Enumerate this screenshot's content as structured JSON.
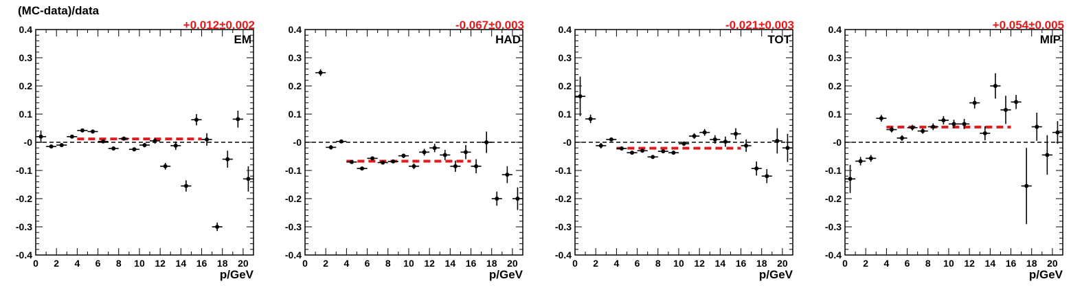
{
  "y_title": "(MC-data)/data",
  "chart_data": [
    {
      "type": "scatter",
      "label": "EM",
      "fit_text": "+0.012±0.002",
      "fit": {
        "value": 0.012,
        "x_range": [
          4,
          16
        ]
      },
      "xlabel": "p/GeV",
      "ylabel": "(MC-data)/data",
      "xlim": [
        0,
        21
      ],
      "ylim": [
        -0.4,
        0.4
      ],
      "xticks": [
        0,
        2,
        4,
        6,
        8,
        10,
        12,
        14,
        16,
        18,
        20
      ],
      "yticks": [
        -0.4,
        -0.3,
        -0.2,
        -0.1,
        0,
        0.1,
        0.2,
        0.3,
        0.4
      ],
      "ytick_labels": [
        "-0.4",
        "-0.3",
        "-0.2",
        "-0.1",
        "-0",
        "0.1",
        "0.2",
        "0.3",
        "0.4"
      ],
      "points": [
        {
          "x": 0.5,
          "y": 0.02,
          "ey": 0.022
        },
        {
          "x": 1.5,
          "y": -0.015,
          "ey": 0.006
        },
        {
          "x": 2.5,
          "y": -0.01,
          "ey": 0.006
        },
        {
          "x": 3.5,
          "y": 0.02,
          "ey": 0.006
        },
        {
          "x": 4.5,
          "y": 0.042,
          "ey": 0.006
        },
        {
          "x": 5.5,
          "y": 0.038,
          "ey": 0.006
        },
        {
          "x": 6.5,
          "y": 0.003,
          "ey": 0.006
        },
        {
          "x": 7.5,
          "y": -0.022,
          "ey": 0.006
        },
        {
          "x": 8.5,
          "y": 0.013,
          "ey": 0.006
        },
        {
          "x": 9.5,
          "y": -0.025,
          "ey": 0.007
        },
        {
          "x": 10.5,
          "y": -0.01,
          "ey": 0.008
        },
        {
          "x": 11.5,
          "y": 0.005,
          "ey": 0.01
        },
        {
          "x": 12.5,
          "y": -0.085,
          "ey": 0.012
        },
        {
          "x": 13.5,
          "y": -0.012,
          "ey": 0.015
        },
        {
          "x": 14.5,
          "y": -0.155,
          "ey": 0.02
        },
        {
          "x": 15.5,
          "y": 0.08,
          "ey": 0.02
        },
        {
          "x": 16.5,
          "y": 0.01,
          "ey": 0.022
        },
        {
          "x": 17.5,
          "y": -0.3,
          "ey": 0.015
        },
        {
          "x": 18.5,
          "y": -0.06,
          "ey": 0.03
        },
        {
          "x": 19.5,
          "y": 0.082,
          "ey": 0.03
        },
        {
          "x": 20.5,
          "y": -0.13,
          "ey": 0.045
        }
      ]
    },
    {
      "type": "scatter",
      "label": "HAD",
      "fit_text": "-0.067±0.003",
      "fit": {
        "value": -0.067,
        "x_range": [
          4,
          16
        ]
      },
      "xlabel": "p/GeV",
      "ylabel": "",
      "xlim": [
        0,
        21
      ],
      "ylim": [
        -0.4,
        0.4
      ],
      "xticks": [
        0,
        2,
        4,
        6,
        8,
        10,
        12,
        14,
        16,
        18,
        20
      ],
      "yticks": [
        -0.4,
        -0.3,
        -0.2,
        -0.1,
        0,
        0.1,
        0.2,
        0.3,
        0.4
      ],
      "ytick_labels": [
        "-0.4",
        "-0.3",
        "-0.2",
        "-0.1",
        "-0",
        "0.1",
        "0.2",
        "0.3",
        "0.4"
      ],
      "points": [
        {
          "x": 1.5,
          "y": 0.247,
          "ey": 0.012
        },
        {
          "x": 2.5,
          "y": -0.018,
          "ey": 0.008
        },
        {
          "x": 3.5,
          "y": 0.003,
          "ey": 0.006
        },
        {
          "x": 4.5,
          "y": -0.07,
          "ey": 0.006
        },
        {
          "x": 5.5,
          "y": -0.093,
          "ey": 0.006
        },
        {
          "x": 6.5,
          "y": -0.057,
          "ey": 0.006
        },
        {
          "x": 7.5,
          "y": -0.072,
          "ey": 0.006
        },
        {
          "x": 8.5,
          "y": -0.068,
          "ey": 0.006
        },
        {
          "x": 9.5,
          "y": -0.048,
          "ey": 0.008
        },
        {
          "x": 10.5,
          "y": -0.085,
          "ey": 0.01
        },
        {
          "x": 11.5,
          "y": -0.035,
          "ey": 0.012
        },
        {
          "x": 12.5,
          "y": -0.02,
          "ey": 0.015
        },
        {
          "x": 13.5,
          "y": -0.045,
          "ey": 0.018
        },
        {
          "x": 14.5,
          "y": -0.085,
          "ey": 0.02
        },
        {
          "x": 15.5,
          "y": -0.035,
          "ey": 0.025
        },
        {
          "x": 16.5,
          "y": -0.085,
          "ey": 0.025
        },
        {
          "x": 17.5,
          "y": 0.0,
          "ey": 0.038
        },
        {
          "x": 18.5,
          "y": -0.2,
          "ey": 0.025
        },
        {
          "x": 19.5,
          "y": -0.115,
          "ey": 0.03
        },
        {
          "x": 20.5,
          "y": -0.2,
          "ey": 0.04
        }
      ]
    },
    {
      "type": "scatter",
      "label": "TOT",
      "fit_text": "-0.021±0.003",
      "fit": {
        "value": -0.021,
        "x_range": [
          4,
          16
        ]
      },
      "xlabel": "p/GeV",
      "ylabel": "",
      "xlim": [
        0,
        21
      ],
      "ylim": [
        -0.4,
        0.4
      ],
      "xticks": [
        0,
        2,
        4,
        6,
        8,
        10,
        12,
        14,
        16,
        18,
        20
      ],
      "yticks": [
        -0.4,
        -0.3,
        -0.2,
        -0.1,
        0,
        0.1,
        0.2,
        0.3,
        0.4
      ],
      "ytick_labels": [
        "-0.4",
        "-0.3",
        "-0.2",
        "-0.1",
        "-0",
        "0.1",
        "0.2",
        "0.3",
        "0.4"
      ],
      "points": [
        {
          "x": 0.5,
          "y": 0.163,
          "ey": 0.07
        },
        {
          "x": 1.5,
          "y": 0.083,
          "ey": 0.015
        },
        {
          "x": 2.5,
          "y": -0.012,
          "ey": 0.01
        },
        {
          "x": 3.5,
          "y": 0.01,
          "ey": 0.006
        },
        {
          "x": 4.5,
          "y": -0.022,
          "ey": 0.006
        },
        {
          "x": 5.5,
          "y": -0.037,
          "ey": 0.006
        },
        {
          "x": 6.5,
          "y": -0.03,
          "ey": 0.006
        },
        {
          "x": 7.5,
          "y": -0.052,
          "ey": 0.006
        },
        {
          "x": 8.5,
          "y": -0.032,
          "ey": 0.006
        },
        {
          "x": 9.5,
          "y": -0.037,
          "ey": 0.007
        },
        {
          "x": 10.5,
          "y": -0.005,
          "ey": 0.008
        },
        {
          "x": 11.5,
          "y": 0.022,
          "ey": 0.01
        },
        {
          "x": 12.5,
          "y": 0.035,
          "ey": 0.012
        },
        {
          "x": 13.5,
          "y": 0.01,
          "ey": 0.015
        },
        {
          "x": 14.5,
          "y": 0.002,
          "ey": 0.018
        },
        {
          "x": 15.5,
          "y": 0.03,
          "ey": 0.02
        },
        {
          "x": 16.5,
          "y": -0.012,
          "ey": 0.022
        },
        {
          "x": 17.5,
          "y": -0.093,
          "ey": 0.025
        },
        {
          "x": 18.5,
          "y": -0.12,
          "ey": 0.025
        },
        {
          "x": 19.5,
          "y": 0.005,
          "ey": 0.045
        },
        {
          "x": 20.5,
          "y": -0.02,
          "ey": 0.05
        }
      ]
    },
    {
      "type": "scatter",
      "label": "MIP",
      "fit_text": "+0.054±0.005",
      "fit": {
        "value": 0.054,
        "x_range": [
          4,
          16
        ]
      },
      "xlabel": "p/GeV",
      "ylabel": "",
      "xlim": [
        0,
        21
      ],
      "ylim": [
        -0.4,
        0.4
      ],
      "xticks": [
        0,
        2,
        4,
        6,
        8,
        10,
        12,
        14,
        16,
        18,
        20
      ],
      "yticks": [
        -0.4,
        -0.3,
        -0.2,
        -0.1,
        0,
        0.1,
        0.2,
        0.3,
        0.4
      ],
      "ytick_labels": [
        "-0.4",
        "-0.3",
        "-0.2",
        "-0.1",
        "-0",
        "0.1",
        "0.2",
        "0.3",
        "0.4"
      ],
      "points": [
        {
          "x": 0.5,
          "y": -0.13,
          "ey": 0.05
        },
        {
          "x": 1.5,
          "y": -0.067,
          "ey": 0.015
        },
        {
          "x": 2.5,
          "y": -0.057,
          "ey": 0.012
        },
        {
          "x": 3.5,
          "y": 0.085,
          "ey": 0.012
        },
        {
          "x": 4.5,
          "y": 0.045,
          "ey": 0.01
        },
        {
          "x": 5.5,
          "y": 0.015,
          "ey": 0.01
        },
        {
          "x": 6.5,
          "y": 0.052,
          "ey": 0.01
        },
        {
          "x": 7.5,
          "y": 0.04,
          "ey": 0.01
        },
        {
          "x": 8.5,
          "y": 0.055,
          "ey": 0.012
        },
        {
          "x": 9.5,
          "y": 0.078,
          "ey": 0.015
        },
        {
          "x": 10.5,
          "y": 0.065,
          "ey": 0.015
        },
        {
          "x": 11.5,
          "y": 0.065,
          "ey": 0.018
        },
        {
          "x": 12.5,
          "y": 0.14,
          "ey": 0.02
        },
        {
          "x": 13.5,
          "y": 0.032,
          "ey": 0.025
        },
        {
          "x": 14.5,
          "y": 0.2,
          "ey": 0.045
        },
        {
          "x": 15.5,
          "y": 0.115,
          "ey": 0.05
        },
        {
          "x": 16.5,
          "y": 0.143,
          "ey": 0.025
        },
        {
          "x": 17.5,
          "y": -0.155,
          "ey": 0.135
        },
        {
          "x": 18.5,
          "y": 0.055,
          "ey": 0.05
        },
        {
          "x": 19.5,
          "y": -0.045,
          "ey": 0.07
        },
        {
          "x": 20.5,
          "y": 0.035,
          "ey": 0.04
        }
      ]
    }
  ],
  "colors": {
    "fit": "#e31a1c",
    "points": "#000000",
    "zero_line": "#000000"
  }
}
